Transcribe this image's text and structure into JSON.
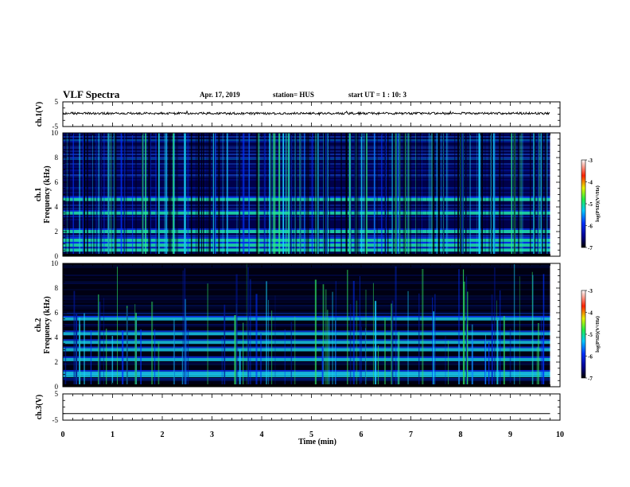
{
  "header": {
    "title": "VLF Spectra",
    "date": "Apr. 17, 2019",
    "station": "station= HUS",
    "start": "start  UT =   1 : 10: 3"
  },
  "chart_data": [
    {
      "type": "line",
      "name_label": "ch.1(V)",
      "ylabel": "ch.1(V)",
      "ylim": [
        -5,
        5
      ],
      "y_ticks": [
        "5",
        "-5"
      ],
      "x_range": [
        0,
        10
      ],
      "x": [
        0,
        1,
        2,
        3,
        4,
        5,
        6,
        7,
        8,
        9,
        9.8
      ],
      "y": [
        0.4,
        0.3,
        0.4,
        0.3,
        0.3,
        0.3,
        0.4,
        0.3,
        0.4,
        0.3,
        0.3
      ]
    },
    {
      "type": "heatmap",
      "ylabel_top": "ch.1",
      "ylabel": "Frequency (kHz)",
      "ylim": [
        0,
        10
      ],
      "y_ticks": [
        "0",
        "2",
        "4",
        "6",
        "8",
        "10"
      ],
      "x_range": [
        0,
        10
      ],
      "data_end_min": 9.8,
      "description_bands_khz": [
        0.5,
        0.9,
        1.3,
        2.0,
        3.5,
        4.6
      ],
      "colorbar": {
        "label": "log(PSD)(V²/Hz)",
        "range": [
          -7,
          -3
        ],
        "ticks": [
          "-3",
          "-4",
          "-5",
          "-6",
          "-7"
        ]
      }
    },
    {
      "type": "heatmap",
      "ylabel_top": "ch.2",
      "ylabel": "Frequency (kHz)",
      "ylim": [
        0,
        10
      ],
      "y_ticks": [
        "0",
        "2",
        "4",
        "6",
        "8",
        "10"
      ],
      "x_range": [
        0,
        10
      ],
      "data_end_min": 9.8,
      "description_bands_khz": [
        0.9,
        1.1,
        2.2,
        3.0,
        3.6,
        4.3,
        5.5
      ],
      "colorbar": {
        "label": "log(PSD)(V²/Hz)",
        "range": [
          -7,
          -3
        ],
        "ticks": [
          "-3",
          "-4",
          "-5",
          "-6",
          "-7"
        ]
      }
    },
    {
      "type": "line",
      "ylabel": "ch.3(V)",
      "ylim": [
        -5,
        5
      ],
      "y_ticks": [
        "5",
        "-5"
      ],
      "x_range": [
        0,
        10
      ],
      "x": [
        0,
        9.8
      ],
      "y": [
        -2.5,
        -2.5
      ]
    }
  ],
  "x_axis": {
    "label": "Time  (min)",
    "ticks": [
      "0",
      "1",
      "2",
      "3",
      "4",
      "5",
      "6",
      "7",
      "8",
      "9",
      "10"
    ]
  }
}
